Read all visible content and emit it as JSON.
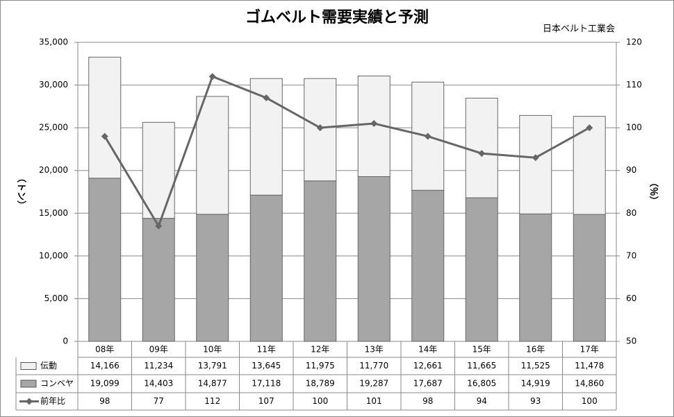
{
  "chart_data": {
    "type": "bar-line",
    "title": "ゴムベルト需要実績と予測",
    "subtitle": "日本ベルト工業会",
    "y_label": "（トン）",
    "y2_label": "（％）",
    "categories": [
      "08年",
      "09年",
      "10年",
      "11年",
      "12年",
      "13年",
      "14年",
      "15年",
      "16年",
      "17年"
    ],
    "series": [
      {
        "name": "伝動",
        "type": "bar",
        "color": "#f2f2f2",
        "values": [
          14166,
          11234,
          13791,
          13645,
          11975,
          11770,
          12661,
          11665,
          11525,
          11478
        ],
        "value_labels": [
          "14,166",
          "11,234",
          "13,791",
          "13,645",
          "11,975",
          "11,770",
          "12,661",
          "11,665",
          "11,525",
          "11,478"
        ]
      },
      {
        "name": "コンベヤ",
        "type": "bar",
        "color": "#a6a6a6",
        "values": [
          19099,
          14403,
          14877,
          17118,
          18789,
          19287,
          17687,
          16805,
          14919,
          14860
        ],
        "value_labels": [
          "19,099",
          "14,403",
          "14,877",
          "17,118",
          "18,789",
          "19,287",
          "17,687",
          "16,805",
          "14,919",
          "14,860"
        ]
      },
      {
        "name": "前年比",
        "type": "line",
        "axis": "y2",
        "color": "#666666",
        "values": [
          98,
          77,
          112,
          107,
          100,
          101,
          98,
          94,
          93,
          100
        ]
      }
    ],
    "ylim": [
      0,
      35000
    ],
    "yticks": [
      0,
      {
        "value": 5000,
        "label": "5,000"
      },
      {
        "value": 10000,
        "label": "10,000"
      },
      {
        "value": 15000,
        "label": "15,000"
      },
      {
        "value": 20000,
        "label": "20,000"
      },
      {
        "value": 25000,
        "label": "25,000"
      },
      {
        "value": 30000,
        "label": "30,000"
      },
      {
        "value": 35000,
        "label": "35,000"
      }
    ],
    "y2lim": [
      50,
      120
    ],
    "y2ticks": [
      50,
      60,
      70,
      80,
      90,
      100,
      110,
      120
    ],
    "grid": true
  }
}
